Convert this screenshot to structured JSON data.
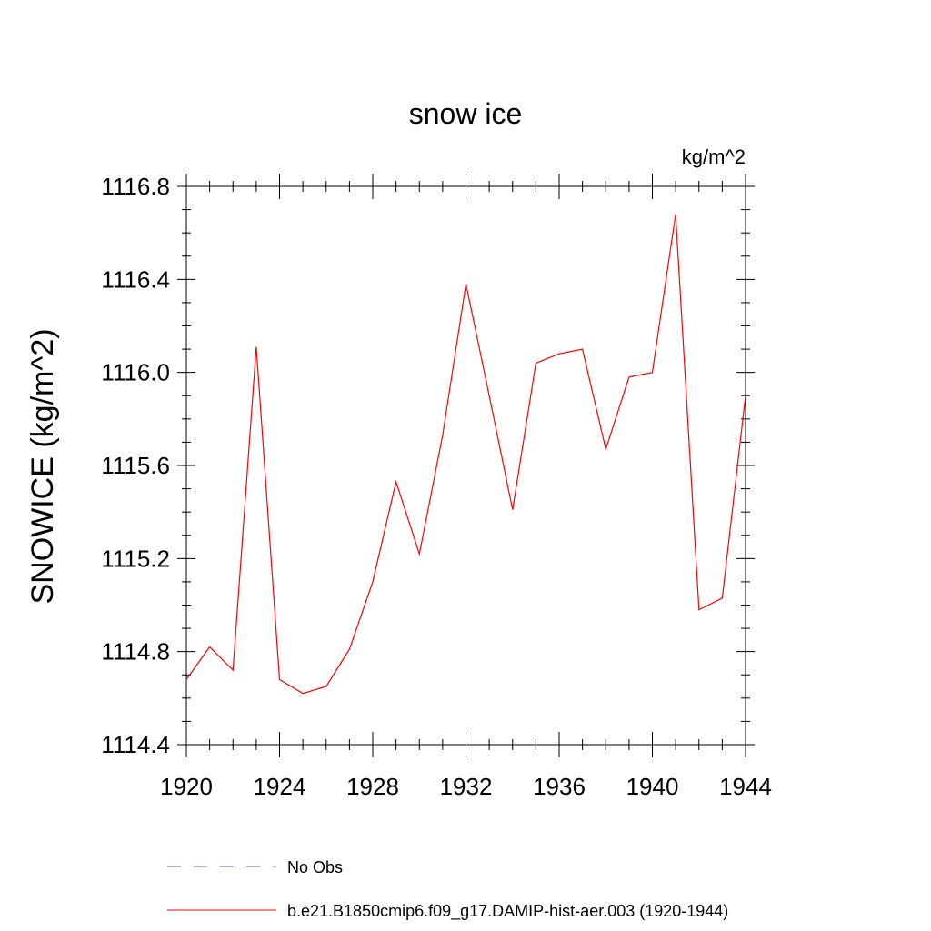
{
  "chart_data": {
    "type": "line",
    "title": "snow ice",
    "units_label": "kg/m^2",
    "xlabel": "",
    "ylabel": "SNOWICE  (kg/m^2)",
    "xlim": [
      1920,
      1944
    ],
    "ylim": [
      1114.4,
      1116.8
    ],
    "x_ticks": [
      "1920",
      "1924",
      "1928",
      "1932",
      "1936",
      "1940",
      "1944"
    ],
    "y_ticks": [
      "1114.4",
      "1114.8",
      "1115.2",
      "1115.6",
      "1116.0",
      "1116.4",
      "1116.8"
    ],
    "grid": false,
    "series": [
      {
        "name": "b.e21.B1850cmip6.f09_g17.DAMIP-hist-aer.003 (1920-1944)",
        "color": "#ff0000",
        "style": "solid",
        "x": [
          1920,
          1921,
          1922,
          1923,
          1924,
          1925,
          1926,
          1927,
          1928,
          1929,
          1930,
          1931,
          1932,
          1933,
          1934,
          1935,
          1936,
          1937,
          1938,
          1939,
          1940,
          1941,
          1942,
          1943,
          1944
        ],
        "values": [
          1114.68,
          1114.82,
          1114.72,
          1116.11,
          1114.68,
          1114.62,
          1114.65,
          1114.81,
          1115.1,
          1115.53,
          1115.22,
          1115.73,
          1116.38,
          1115.9,
          1115.41,
          1116.04,
          1116.08,
          1116.1,
          1115.67,
          1115.98,
          1116.0,
          1116.68,
          1114.98,
          1115.03,
          1115.9
        ]
      }
    ],
    "legend": {
      "placement": "bottom",
      "entries": [
        {
          "label": "No Obs",
          "color": "#5a5ab4",
          "style": "dashed"
        },
        {
          "label": "b.e21.B1850cmip6.f09_g17.DAMIP-hist-aer.003 (1920-1944)",
          "color": "#ff0000",
          "style": "solid"
        }
      ]
    }
  }
}
